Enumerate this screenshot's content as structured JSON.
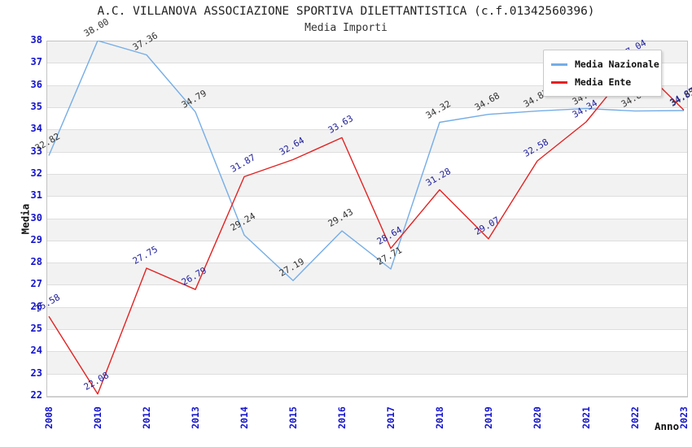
{
  "title": "A.C. VILLANOVA ASSOCIAZIONE SPORTIVA DILETTANTISTICA (c.f.01342560396)",
  "subtitle": "Media Importi",
  "y_axis_title": "Media",
  "x_axis_title": "Anno",
  "legend": {
    "position": "top-right",
    "items": [
      {
        "label": "Media Nazionale",
        "color": "#75ade6"
      },
      {
        "label": "Media Ente",
        "color": "#e22222"
      }
    ]
  },
  "chart_data": {
    "type": "line",
    "title": "A.C. VILLANOVA ASSOCIAZIONE SPORTIVA DILETTANTISTICA (c.f.01342560396)",
    "subtitle": "Media Importi",
    "xlabel": "Anno",
    "ylabel": "Media",
    "categories": [
      "2008",
      "2010",
      "2012",
      "2013",
      "2014",
      "2015",
      "2016",
      "2017",
      "2018",
      "2019",
      "2020",
      "2021",
      "2022",
      "2023"
    ],
    "series": [
      {
        "name": "Media Nazionale",
        "color": "#75ade6",
        "label_color": "#333333",
        "values": [
          32.82,
          38.0,
          37.36,
          34.79,
          29.24,
          27.19,
          29.43,
          27.71,
          34.32,
          34.68,
          34.83,
          34.94,
          34.83,
          34.85
        ]
      },
      {
        "name": "Media Ente",
        "color": "#e22222",
        "label_color": "#1f1f9c",
        "values": [
          25.58,
          22.08,
          27.75,
          26.79,
          31.87,
          32.64,
          33.63,
          28.64,
          31.28,
          29.07,
          32.58,
          34.34,
          37.04,
          34.87
        ]
      }
    ],
    "ylim": [
      22,
      38
    ],
    "y_tick_step": 1,
    "grid": "horizontal alternating bands, gridline at every integer",
    "legend_position": "top-right",
    "notes": "2022 Media Ente label partially hidden behind legend box"
  },
  "colors": {
    "band_gray": "#f2f2f2",
    "band_white": "#ffffff",
    "gridline": "#dedede",
    "tick_label_blue": "#1414cc",
    "plot_border": "#c3c3c3",
    "background": "#ffffff"
  }
}
